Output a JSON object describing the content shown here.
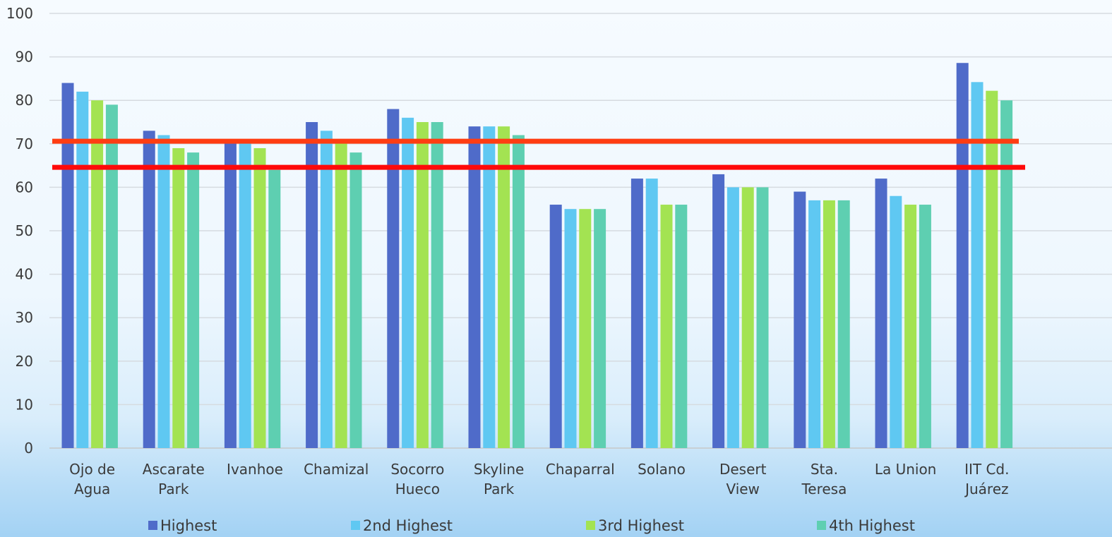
{
  "chart_data": {
    "type": "bar",
    "categories": [
      [
        "Ojo de",
        "Agua"
      ],
      [
        "Ascarate",
        "Park"
      ],
      [
        "Ivanhoe"
      ],
      [
        "Chamizal"
      ],
      [
        "Socorro",
        "Hueco"
      ],
      [
        "Skyline",
        "Park"
      ],
      [
        "Chaparral"
      ],
      [
        "Solano"
      ],
      [
        "Desert",
        "View"
      ],
      [
        "Sta.",
        "Teresa"
      ],
      [
        "La Union"
      ],
      [
        "IIT Cd.",
        "Juárez"
      ]
    ],
    "series": [
      {
        "name": "Highest",
        "color": "#4f6bc9",
        "values": [
          84,
          73,
          71,
          75,
          78,
          74,
          56,
          62,
          63,
          59,
          62,
          88.6
        ]
      },
      {
        "name": "2nd Highest",
        "color": "#5fc8f2",
        "values": [
          82,
          72,
          71,
          73,
          76,
          74,
          55,
          62,
          60,
          57,
          58,
          84.2
        ]
      },
      {
        "name": "3rd Highest",
        "color": "#a3e352",
        "values": [
          80,
          69,
          69,
          71,
          75,
          74,
          55,
          56,
          60,
          57,
          56,
          82.2
        ]
      },
      {
        "name": "4th Highest",
        "color": "#5ecfb1",
        "values": [
          79,
          68,
          64,
          68,
          75,
          72,
          55,
          56,
          60,
          57,
          56,
          80
        ]
      }
    ],
    "ylim": [
      0,
      100
    ],
    "yticks": [
      "0",
      "10",
      "20",
      "30",
      "40",
      "50",
      "60",
      "70",
      "80",
      "90",
      "100"
    ],
    "reference_lines": [
      {
        "value": 70.6,
        "color": "#ff3d12"
      },
      {
        "value": 64.6,
        "color": "#ff0a0a"
      }
    ],
    "grid": true,
    "legend_position": "bottom"
  }
}
